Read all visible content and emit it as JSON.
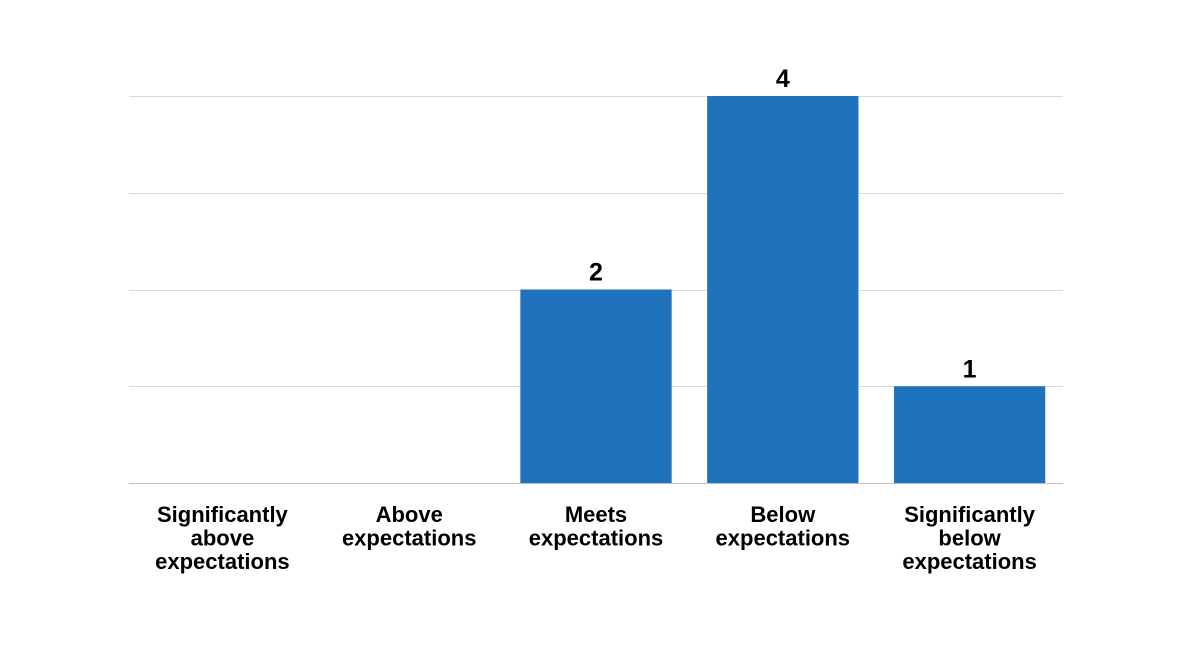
{
  "chart_data": {
    "type": "bar",
    "categories": [
      "Significantly above expectations",
      "Above expectations",
      "Meets expectations",
      "Below expectations",
      "Significantly below expectations"
    ],
    "category_label_lines": [
      [
        "Significantly",
        "above",
        "expectations"
      ],
      [
        "Above",
        "expectations"
      ],
      [
        "Meets",
        "expectations"
      ],
      [
        "Below",
        "expectations"
      ],
      [
        "Significantly",
        "below",
        "expectations"
      ]
    ],
    "values": [
      0,
      0,
      2,
      4,
      1
    ],
    "data_labels": [
      "",
      "",
      "2",
      "4",
      "1"
    ],
    "title": "",
    "xlabel": "",
    "ylabel": "",
    "ylim": [
      0,
      4
    ],
    "grid": true,
    "legend": "none",
    "colors": {
      "bar": "#1f73bd",
      "grid": "#d9d9d9"
    }
  }
}
